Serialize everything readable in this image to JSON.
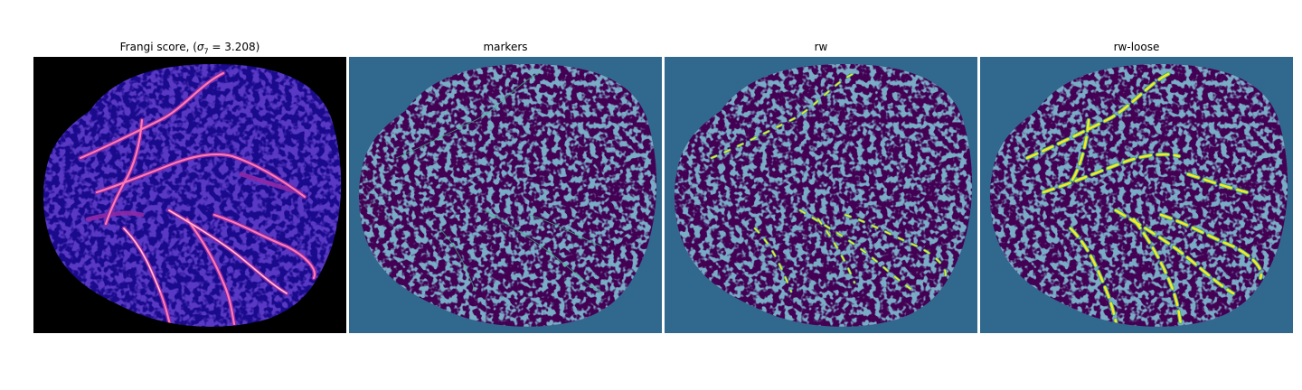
{
  "figure": {
    "panels": [
      {
        "id": "frangi",
        "title_prefix": "Frangi score, (",
        "sigma_symbol": "σ",
        "sigma_sub": "7",
        "title_suffix": " = 3.208)"
      },
      {
        "id": "markers",
        "title": "markers"
      },
      {
        "id": "rw",
        "title": "rw"
      },
      {
        "id": "rw-loose",
        "title": "rw-loose"
      }
    ]
  },
  "colors": {
    "frangi_background": "#000000",
    "frangi_base": "#1a0a8c",
    "frangi_texture": "#2b12b5",
    "frangi_mid": "#8f2aa8",
    "frangi_high": "#ff7ab0",
    "frangi_peak": "#ffd0d8",
    "label_background": "#31688e",
    "label_region": "#440154",
    "label_marker": "#35b779",
    "label_vessel": "#fde725"
  }
}
